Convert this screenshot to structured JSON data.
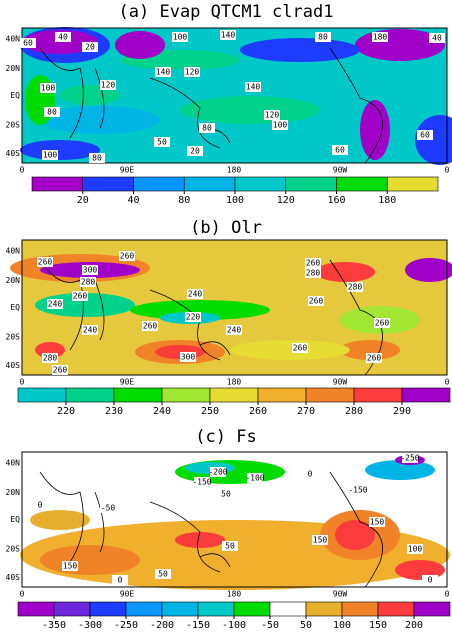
{
  "panels": [
    {
      "title": "(a) Evap QTCM1 clrad1",
      "lat_labels": [
        "40N",
        "20N",
        "EQ",
        "20S",
        "40S"
      ],
      "lon_labels": [
        "0",
        "90E",
        "180",
        "90W",
        "0"
      ],
      "colorbar": {
        "levels": [
          20,
          40,
          80,
          100,
          120,
          160,
          180
        ],
        "colors": [
          "#a000c8",
          "#1e3cff",
          "#0a96ff",
          "#00b4e6",
          "#00c8c8",
          "#00d28c",
          "#00dc00",
          "#e6dc32"
        ]
      },
      "contour_labels": [
        "60",
        "40",
        "20",
        "100",
        "140",
        "80",
        "180",
        "40",
        "100",
        "80",
        "120",
        "140",
        "120",
        "140",
        "120",
        "100",
        "80",
        "50",
        "20",
        "100",
        "80",
        "60",
        "60"
      ]
    },
    {
      "title": "(b) Olr",
      "lat_labels": [
        "40N",
        "20N",
        "EQ",
        "20S",
        "40S"
      ],
      "lon_labels": [
        "0",
        "90E",
        "180",
        "90W",
        "0"
      ],
      "colorbar": {
        "levels": [
          220,
          230,
          240,
          250,
          260,
          270,
          280,
          290
        ],
        "colors": [
          "#00c8c8",
          "#00d28c",
          "#00dc00",
          "#a0e632",
          "#e6dc32",
          "#f0af2d",
          "#f08228",
          "#fa3c3c",
          "#a000c8"
        ]
      },
      "contour_labels": [
        "300",
        "280",
        "260",
        "260",
        "260",
        "240",
        "240",
        "240",
        "260",
        "220",
        "240",
        "280",
        "300",
        "260",
        "260",
        "280",
        "260",
        "280",
        "260",
        "260",
        "260"
      ]
    },
    {
      "title": "(c) Fs",
      "lat_labels": [
        "40N",
        "20N",
        "EQ",
        "20S",
        "40S"
      ],
      "lon_labels": [
        "0",
        "90E",
        "180",
        "90W",
        "0"
      ],
      "colorbar": {
        "levels": [
          -350,
          -300,
          -250,
          -200,
          -150,
          -100,
          -50,
          50,
          100,
          150,
          200
        ],
        "colors": [
          "#a000c8",
          "#6e28dc",
          "#1e3cff",
          "#0a96ff",
          "#00b4e6",
          "#00c8c8",
          "#00dc00",
          "#ffffff",
          "#e6af2d",
          "#f08228",
          "#fa3c3c",
          "#a000c8"
        ]
      },
      "contour_labels": [
        "-250",
        "-200",
        "-150",
        "-100",
        "-150",
        "0",
        "50",
        "0",
        "-50",
        "150",
        "150",
        "150",
        "50",
        "50",
        "0",
        "0",
        "100"
      ]
    }
  ]
}
